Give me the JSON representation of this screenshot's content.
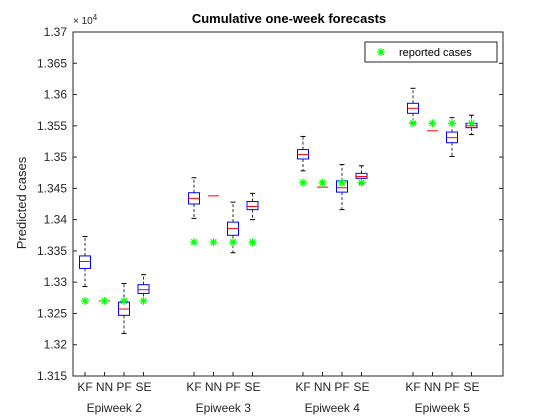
{
  "chart_data": {
    "type": "box",
    "title": "Cumulative one-week forecasts",
    "ylabel": "Predicted cases",
    "y_exponent_prefix": "× 10",
    "y_exponent_power": "4",
    "ylim": [
      1.315,
      1.37
    ],
    "yticks": [
      "1.315",
      "1.32",
      "1.325",
      "1.33",
      "1.335",
      "1.34",
      "1.345",
      "1.35",
      "1.355",
      "1.36",
      "1.365",
      "1.37"
    ],
    "groups": [
      "Epiweek 2",
      "Epiweek 3",
      "Epiweek 4",
      "Epiweek 5"
    ],
    "methods": [
      "KF",
      "NN",
      "PF",
      "SE"
    ],
    "boxes": [
      {
        "group": "Epiweek 2",
        "method": "KF",
        "whisker_low": 1.3293,
        "q1": 1.3322,
        "median": 1.3333,
        "q3": 1.3342,
        "whisker_high": 1.3373
      },
      {
        "group": "Epiweek 2",
        "method": "NN",
        "whisker_low": 1.327,
        "q1": 1.327,
        "median": 1.327,
        "q3": 1.327,
        "whisker_high": 1.327
      },
      {
        "group": "Epiweek 2",
        "method": "PF",
        "whisker_low": 1.3218,
        "q1": 1.3247,
        "median": 1.3257,
        "q3": 1.3268,
        "whisker_high": 1.3298
      },
      {
        "group": "Epiweek 2",
        "method": "SE",
        "whisker_low": 1.327,
        "q1": 1.3282,
        "median": 1.3288,
        "q3": 1.3296,
        "whisker_high": 1.3312
      },
      {
        "group": "Epiweek 3",
        "method": "KF",
        "whisker_low": 1.3402,
        "q1": 1.3425,
        "median": 1.3434,
        "q3": 1.3443,
        "whisker_high": 1.3467
      },
      {
        "group": "Epiweek 3",
        "method": "NN",
        "whisker_low": 1.3438,
        "q1": 1.3438,
        "median": 1.3438,
        "q3": 1.3438,
        "whisker_high": 1.3438
      },
      {
        "group": "Epiweek 3",
        "method": "PF",
        "whisker_low": 1.3347,
        "q1": 1.3375,
        "median": 1.3386,
        "q3": 1.3396,
        "whisker_high": 1.3428
      },
      {
        "group": "Epiweek 3",
        "method": "SE",
        "whisker_low": 1.34,
        "q1": 1.3416,
        "median": 1.3421,
        "q3": 1.3429,
        "whisker_high": 1.3442
      },
      {
        "group": "Epiweek 4",
        "method": "KF",
        "whisker_low": 1.3478,
        "q1": 1.3497,
        "median": 1.3504,
        "q3": 1.3512,
        "whisker_high": 1.3533
      },
      {
        "group": "Epiweek 4",
        "method": "NN",
        "whisker_low": 1.3452,
        "q1": 1.3452,
        "median": 1.3452,
        "q3": 1.3452,
        "whisker_high": 1.3452
      },
      {
        "group": "Epiweek 4",
        "method": "PF",
        "whisker_low": 1.3416,
        "q1": 1.3444,
        "median": 1.3451,
        "q3": 1.3462,
        "whisker_high": 1.3488
      },
      {
        "group": "Epiweek 4",
        "method": "SE",
        "whisker_low": 1.3457,
        "q1": 1.3466,
        "median": 1.3469,
        "q3": 1.3474,
        "whisker_high": 1.3486
      },
      {
        "group": "Epiweek 5",
        "method": "KF",
        "whisker_low": 1.3555,
        "q1": 1.357,
        "median": 1.3578,
        "q3": 1.3586,
        "whisker_high": 1.361
      },
      {
        "group": "Epiweek 5",
        "method": "NN",
        "whisker_low": 1.3542,
        "q1": 1.3542,
        "median": 1.3542,
        "q3": 1.3542,
        "whisker_high": 1.3542
      },
      {
        "group": "Epiweek 5",
        "method": "PF",
        "whisker_low": 1.3501,
        "q1": 1.3523,
        "median": 1.3531,
        "q3": 1.354,
        "whisker_high": 1.3563
      },
      {
        "group": "Epiweek 5",
        "method": "SE",
        "whisker_low": 1.3536,
        "q1": 1.3547,
        "median": 1.355,
        "q3": 1.3554,
        "whisker_high": 1.3567
      }
    ],
    "reported_series": {
      "name": "reported cases",
      "values_by_group": [
        1.327,
        1.3364,
        1.3459,
        1.3554
      ]
    },
    "legend_position": "top-right",
    "grid": false,
    "colors": {
      "box": "#0000ff",
      "median": "#ff0000",
      "whisker": "#000000",
      "reported": "#00ff00",
      "axis": "#262626"
    }
  }
}
